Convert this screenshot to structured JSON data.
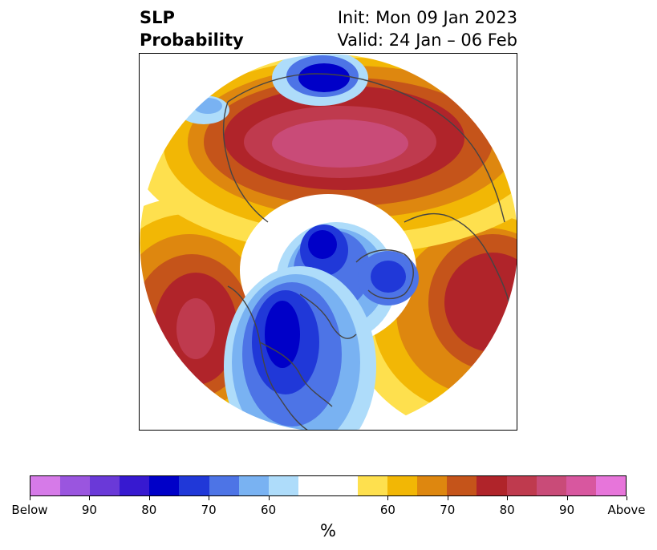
{
  "title": {
    "left_line1": "SLP",
    "left_line2": "Probability",
    "right_line1": "Init: Mon 09 Jan 2023",
    "right_line2": "Valid: 24 Jan – 06 Feb"
  },
  "colorbar": {
    "unit_label": "%",
    "colors": [
      "#d67ae8",
      "#9a55df",
      "#6a39d8",
      "#3719d0",
      "#0000c8",
      "#2038d8",
      "#4d74e6",
      "#79b2f2",
      "#aedcfa",
      "#ffffff",
      "#ffffff",
      "#fee04e",
      "#f2b705",
      "#de870f",
      "#c5541a",
      "#b0242a",
      "#bf3a4e",
      "#c94b78",
      "#d8579f",
      "#e775da"
    ],
    "tick_labels": [
      "Below",
      "90",
      "80",
      "70",
      "60",
      "60",
      "70",
      "80",
      "90",
      "Above"
    ]
  },
  "map": {
    "projection": "north-polar-stereographic",
    "palette": {
      "below_90": "#3719d0",
      "below_80": "#0000c8",
      "below_70": "#2038d8",
      "below_65": "#4d74e6",
      "below_60": "#79b2f2",
      "below_55": "#aedcfa",
      "neutral": "#ffffff",
      "above_55": "#fee04e",
      "above_60": "#f2b705",
      "above_65": "#de870f",
      "above_70": "#c5541a",
      "above_75": "#b0242a",
      "above_80": "#bf3a4e",
      "above_85": "#c94b78",
      "coast": "#444444"
    }
  }
}
